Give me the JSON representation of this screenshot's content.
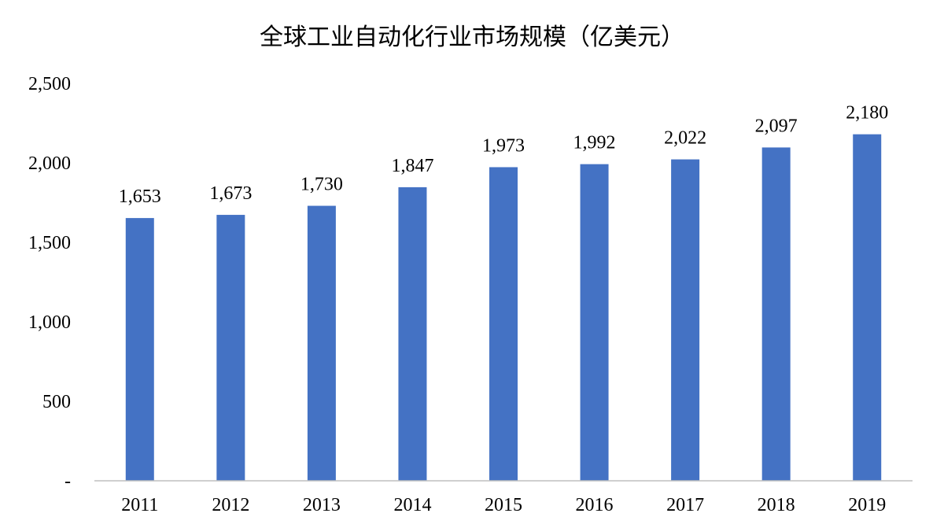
{
  "chart_data": {
    "type": "bar",
    "title": "全球工业自动化行业市场规模（亿美元）",
    "xlabel": "",
    "ylabel": "",
    "categories": [
      "2011",
      "2012",
      "2013",
      "2014",
      "2015",
      "2016",
      "2017",
      "2018",
      "2019"
    ],
    "values": [
      1653,
      1673,
      1730,
      1847,
      1973,
      1992,
      2022,
      2097,
      2180
    ],
    "data_labels": [
      "1,653",
      "1,673",
      "1,730",
      "1,847",
      "1,973",
      "1,992",
      "2,022",
      "2,097",
      "2,180"
    ],
    "ylim": [
      0,
      2500
    ],
    "yticks": [
      0,
      500,
      1000,
      1500,
      2000,
      2500
    ],
    "ytick_labels": [
      "-",
      "500",
      "1,000",
      "1,500",
      "2,000",
      "2,500"
    ],
    "bar_color": "#4472C4",
    "grid": false,
    "legend": "none"
  }
}
